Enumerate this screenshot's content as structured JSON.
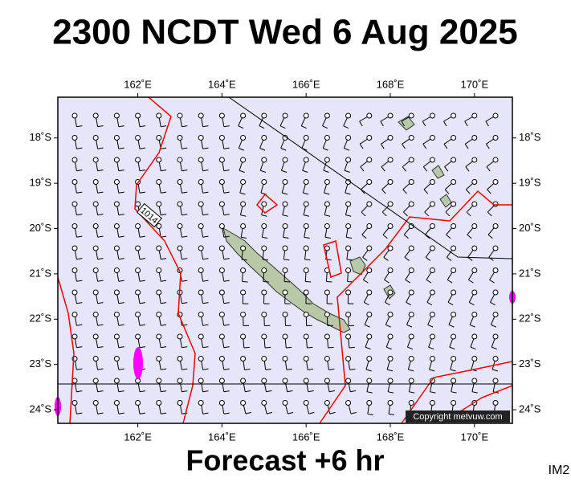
{
  "title": "2300 NCDT Wed 6 Aug 2025",
  "footer": "Forecast +6 hr",
  "image_id": "IM2",
  "copyright": "Copyright metvuw.com",
  "isobar_label": "1014",
  "map": {
    "lon_range": [
      160.1,
      170.9
    ],
    "lat_range": [
      -17.1,
      -24.3
    ],
    "lon_ticks": [
      {
        "value": 162,
        "label": "162˚E"
      },
      {
        "value": 164,
        "label": "164˚E"
      },
      {
        "value": 166,
        "label": "166˚E"
      },
      {
        "value": 168,
        "label": "168˚E"
      },
      {
        "value": 170,
        "label": "170˚E"
      }
    ],
    "lat_ticks": [
      {
        "value": -18,
        "label": "18˚S"
      },
      {
        "value": -19,
        "label": "19˚S"
      },
      {
        "value": -20,
        "label": "20˚S"
      },
      {
        "value": -21,
        "label": "21˚S"
      },
      {
        "value": -22,
        "label": "22˚S"
      },
      {
        "value": -23,
        "label": "23˚S"
      },
      {
        "value": -24,
        "label": "24˚S"
      }
    ]
  }
}
